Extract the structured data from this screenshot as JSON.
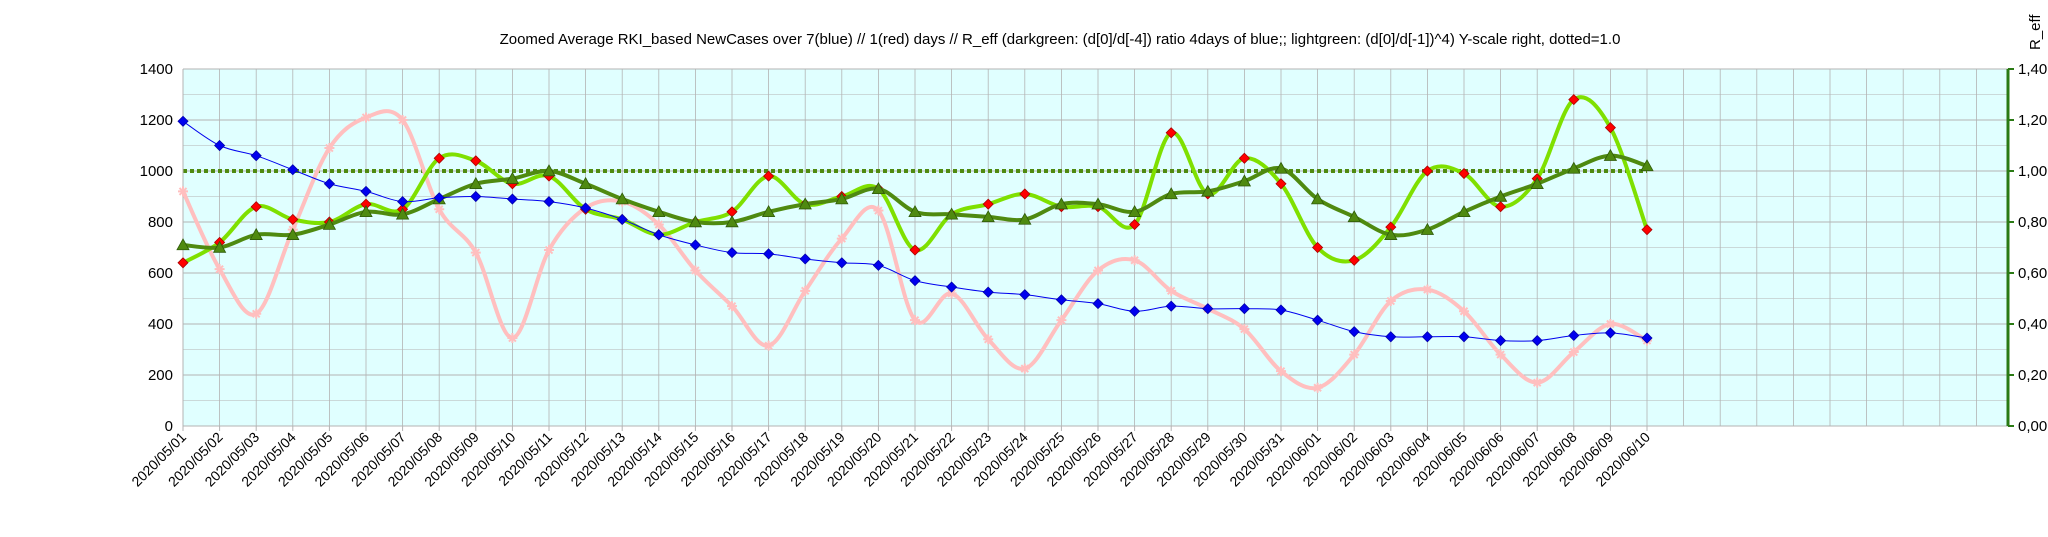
{
  "chart_data": {
    "type": "line",
    "title": "Zoomed Average RKI_based NewCases over 7(blue) // 1(red) days //  R_eff (darkgreen: (d[0]/d[-4]) ratio 4days of blue;; lightgreen: (d[0]/d[-1])^4) Y-scale right, dotted=1.0",
    "y2label": "R_eff",
    "ylim": [
      0,
      1400
    ],
    "y_ticks": [
      "0",
      "200",
      "400",
      "600",
      "800",
      "1000",
      "1200",
      "1400"
    ],
    "y2lim": [
      0,
      1.4
    ],
    "y2_ticks": [
      "0,00",
      "0,20",
      "0,40",
      "0,60",
      "0,80",
      "1,00",
      "1,20",
      "1,40"
    ],
    "grid": true,
    "categories": [
      "2020/05/01",
      "2020/05/02",
      "2020/05/03",
      "2020/05/04",
      "2020/05/05",
      "2020/05/06",
      "2020/05/07",
      "2020/05/08",
      "2020/05/09",
      "2020/05/10",
      "2020/05/11",
      "2020/05/12",
      "2020/05/13",
      "2020/05/14",
      "2020/05/15",
      "2020/05/16",
      "2020/05/17",
      "2020/05/18",
      "2020/05/19",
      "2020/05/20",
      "2020/05/21",
      "2020/05/22",
      "2020/05/23",
      "2020/05/24",
      "2020/05/25",
      "2020/05/26",
      "2020/05/27",
      "2020/05/28",
      "2020/05/29",
      "2020/05/30",
      "2020/05/31",
      "2020/06/01",
      "2020/06/02",
      "2020/06/03",
      "2020/06/04",
      "2020/06/05",
      "2020/06/06",
      "2020/06/07",
      "2020/06/08",
      "2020/06/09",
      "2020/06/10"
    ],
    "series": [
      {
        "key": "avg7",
        "axis": "left",
        "color": "#0000ee",
        "marker": "diamond",
        "values": [
          1195,
          1100,
          1060,
          1005,
          950,
          920,
          880,
          895,
          900,
          890,
          880,
          855,
          810,
          750,
          710,
          680,
          675,
          655,
          640,
          630,
          570,
          545,
          525,
          515,
          495,
          480,
          450,
          470,
          460,
          460,
          455,
          415,
          370,
          350,
          350,
          350,
          335,
          335,
          355,
          365,
          345
        ]
      },
      {
        "key": "daily",
        "axis": "left",
        "color": "#ffbfbf",
        "marker": "star",
        "values": [
          920,
          615,
          440,
          770,
          1090,
          1210,
          1200,
          850,
          680,
          345,
          690,
          855,
          880,
          790,
          610,
          470,
          315,
          530,
          735,
          845,
          415,
          520,
          340,
          225,
          415,
          610,
          650,
          530,
          460,
          380,
          215,
          150,
          280,
          490,
          535,
          450,
          280,
          170,
          290,
          400,
          335
        ]
      },
      {
        "key": "reff_4day",
        "axis": "right",
        "color": "#4f8a10",
        "marker": "triangle",
        "values": [
          0.71,
          0.7,
          0.75,
          0.75,
          0.79,
          0.84,
          0.83,
          0.89,
          0.95,
          0.97,
          1.0,
          0.95,
          0.89,
          0.84,
          0.8,
          0.8,
          0.84,
          0.87,
          0.89,
          0.93,
          0.84,
          0.83,
          0.82,
          0.81,
          0.87,
          0.87,
          0.84,
          0.91,
          0.92,
          0.96,
          1.01,
          0.89,
          0.82,
          0.75,
          0.77,
          0.84,
          0.9,
          0.95,
          1.01,
          1.06,
          1.02
        ]
      },
      {
        "key": "reff_1day",
        "axis": "right",
        "color": "#7fe000",
        "marker": "diamond",
        "values": [
          0.64,
          0.72,
          0.86,
          0.81,
          0.8,
          0.87,
          0.85,
          1.05,
          1.04,
          0.95,
          0.98,
          0.85,
          0.81,
          0.75,
          0.8,
          0.84,
          0.98,
          0.87,
          0.9,
          0.93,
          0.69,
          0.83,
          0.87,
          0.91,
          0.86,
          0.86,
          0.79,
          1.15,
          0.91,
          1.05,
          0.95,
          0.7,
          0.65,
          0.78,
          1.0,
          0.99,
          0.86,
          0.97,
          1.28,
          1.17,
          0.77
        ]
      }
    ],
    "reference_line": {
      "axis": "right",
      "value": 1.0,
      "style": "dotted",
      "color": "#4f8a10"
    }
  },
  "colors": {
    "plot_background": "#e0ffff",
    "grid": "#b3b3b3",
    "right_axis": "#2a7a14",
    "marker_red": "#ff0000"
  }
}
